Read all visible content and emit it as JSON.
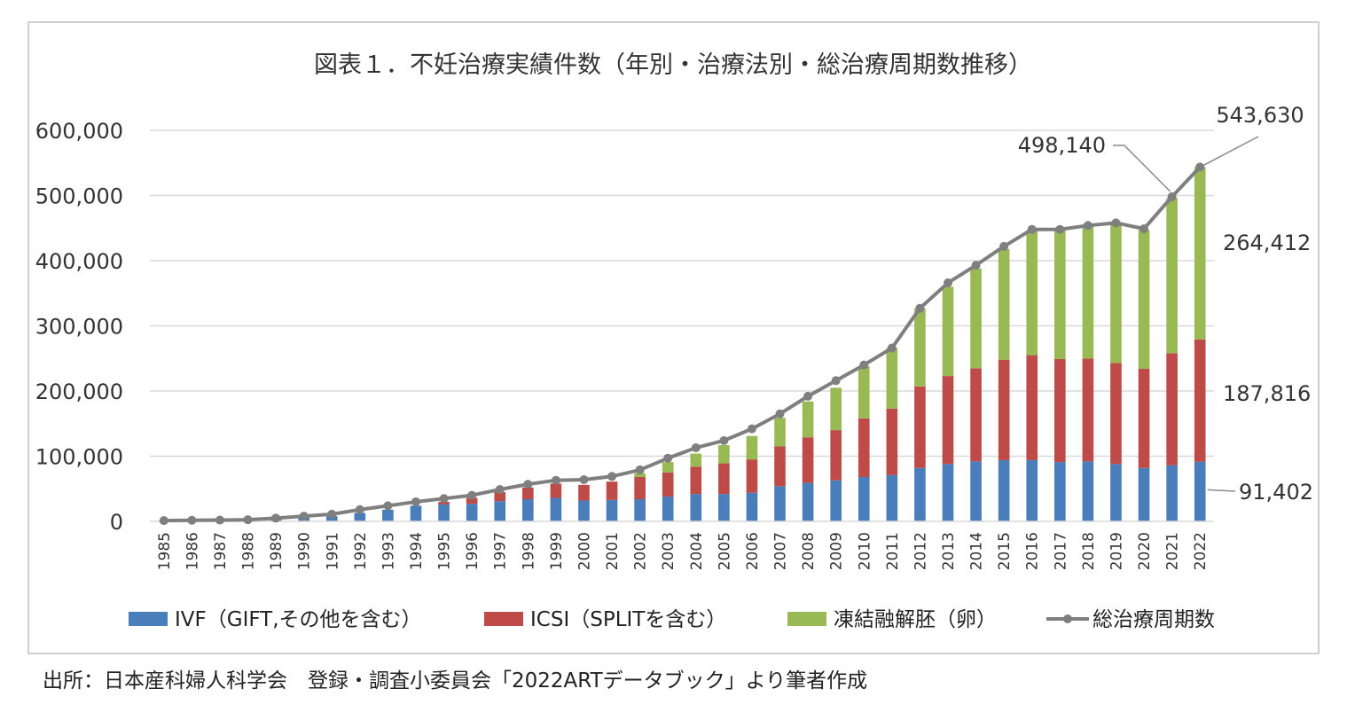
{
  "source_note": "出所：日本産科婦人科学会　登録・調査小委員会「2022ARTデータブック」より筆者作成",
  "colors": {
    "ivf": "#4a7ebb",
    "icsi": "#be4b48",
    "frozen": "#98b954",
    "total_line": "#7f7f7f",
    "grid": "#d9d9d9"
  },
  "chart_data": {
    "type": "bar",
    "stacked": true,
    "title": "図表１．不妊治療実績件数（年別・治療法別・総治療周期数推移）",
    "xlabel": "",
    "ylabel": "",
    "ylim": [
      0,
      600000
    ],
    "y_ticks": [
      0,
      100000,
      200000,
      300000,
      400000,
      500000,
      600000
    ],
    "y_tick_labels": [
      "0",
      "100,000",
      "200,000",
      "300,000",
      "400,000",
      "500,000",
      "600,000"
    ],
    "grid": true,
    "legend_position": "bottom",
    "categories": [
      "1985",
      "1986",
      "1987",
      "1988",
      "1989",
      "1990",
      "1991",
      "1992",
      "1993",
      "1994",
      "1995",
      "1996",
      "1997",
      "1998",
      "1999",
      "2000",
      "2001",
      "2002",
      "2003",
      "2004",
      "2005",
      "2006",
      "2007",
      "2008",
      "2009",
      "2010",
      "2011",
      "2012",
      "2013",
      "2014",
      "2015",
      "2016",
      "2017",
      "2018",
      "2019",
      "2020",
      "2021",
      "2022"
    ],
    "series": [
      {
        "name": "IVF（GIFT,その他を含む）",
        "type": "bar",
        "values": [
          1200,
          1700,
          2000,
          2500,
          4000,
          6000,
          8000,
          13000,
          18000,
          24000,
          26000,
          27000,
          31000,
          34000,
          36000,
          32000,
          33000,
          34000,
          38000,
          42000,
          42000,
          44000,
          54000,
          59000,
          63000,
          68000,
          71000,
          82000,
          88000,
          92000,
          94000,
          94000,
          91000,
          92000,
          88000,
          82000,
          86000,
          91402
        ]
      },
      {
        "name": "ICSI（SPLITを含む）",
        "type": "bar",
        "values": [
          0,
          0,
          0,
          0,
          0,
          0,
          0,
          0,
          0,
          0,
          4000,
          9000,
          14000,
          18000,
          22000,
          24000,
          28000,
          34000,
          37000,
          42000,
          47000,
          51000,
          61000,
          70000,
          77000,
          90000,
          102000,
          125000,
          135000,
          143000,
          154000,
          161000,
          158000,
          158000,
          155000,
          152000,
          172000,
          187816
        ]
      },
      {
        "name": "凍結融解胚（卵）",
        "type": "bar",
        "values": [
          0,
          0,
          0,
          0,
          0,
          0,
          0,
          0,
          0,
          0,
          0,
          0,
          0,
          0,
          0,
          0,
          0,
          6000,
          16000,
          20000,
          28000,
          36000,
          44000,
          55000,
          65000,
          80000,
          93000,
          120000,
          137000,
          153000,
          170000,
          192000,
          199000,
          203000,
          213000,
          213000,
          238000,
          264412
        ]
      },
      {
        "name": "総治療周期数",
        "type": "line",
        "values": [
          1200,
          1700,
          2000,
          2500,
          5000,
          8000,
          11000,
          18000,
          24000,
          30000,
          35000,
          40000,
          49000,
          57000,
          63000,
          64000,
          69000,
          79000,
          97000,
          113000,
          124000,
          142000,
          165000,
          192000,
          216000,
          240000,
          266000,
          327000,
          366000,
          393000,
          422000,
          448000,
          448000,
          454000,
          458000,
          449000,
          498140,
          543630
        ]
      }
    ],
    "annotations": [
      {
        "category": "2021",
        "series": "総治療周期数",
        "text": "498,140"
      },
      {
        "category": "2022",
        "series": "総治療周期数",
        "text": "543,630"
      },
      {
        "category": "2022",
        "series": "凍結融解胚（卵）",
        "text": "264,412"
      },
      {
        "category": "2022",
        "series": "ICSI（SPLITを含む）",
        "text": "187,816"
      },
      {
        "category": "2022",
        "series": "IVF（GIFT,その他を含む）",
        "text": "91,402"
      }
    ]
  }
}
